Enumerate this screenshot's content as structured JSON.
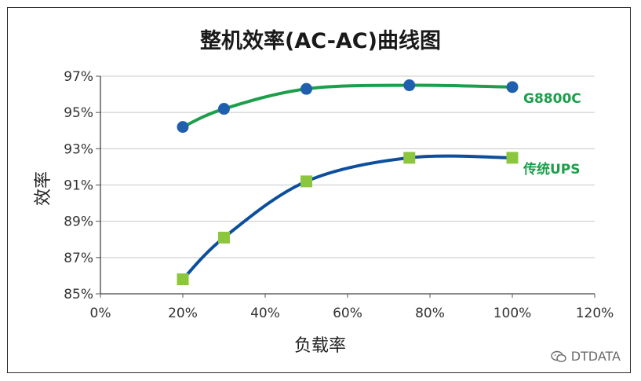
{
  "chart_data": {
    "type": "line",
    "title": "整机效率(AC-AC)曲线图",
    "xlabel": "负载率",
    "ylabel": "效率",
    "x_ticks": [
      "0%",
      "20%",
      "40%",
      "60%",
      "80%",
      "100%",
      "120%"
    ],
    "y_ticks": [
      "85%",
      "87%",
      "89%",
      "91%",
      "93%",
      "95%",
      "97%"
    ],
    "xlim": [
      0,
      120
    ],
    "ylim": [
      85,
      97
    ],
    "grid": "horizontal",
    "series": [
      {
        "name": "G8800C",
        "color": "#1c9e4b",
        "marker_color": "#1f5fae",
        "marker": "circle",
        "x": [
          20,
          30,
          50,
          75,
          100
        ],
        "y": [
          94.2,
          95.2,
          96.3,
          96.5,
          96.4
        ]
      },
      {
        "name": "传统UPS",
        "color": "#0d4f9c",
        "marker_color": "#8cc63f",
        "marker": "square",
        "x": [
          20,
          30,
          50,
          75,
          100
        ],
        "y": [
          85.8,
          88.1,
          91.2,
          92.5,
          92.5
        ]
      }
    ]
  },
  "watermark": "DTDATA"
}
